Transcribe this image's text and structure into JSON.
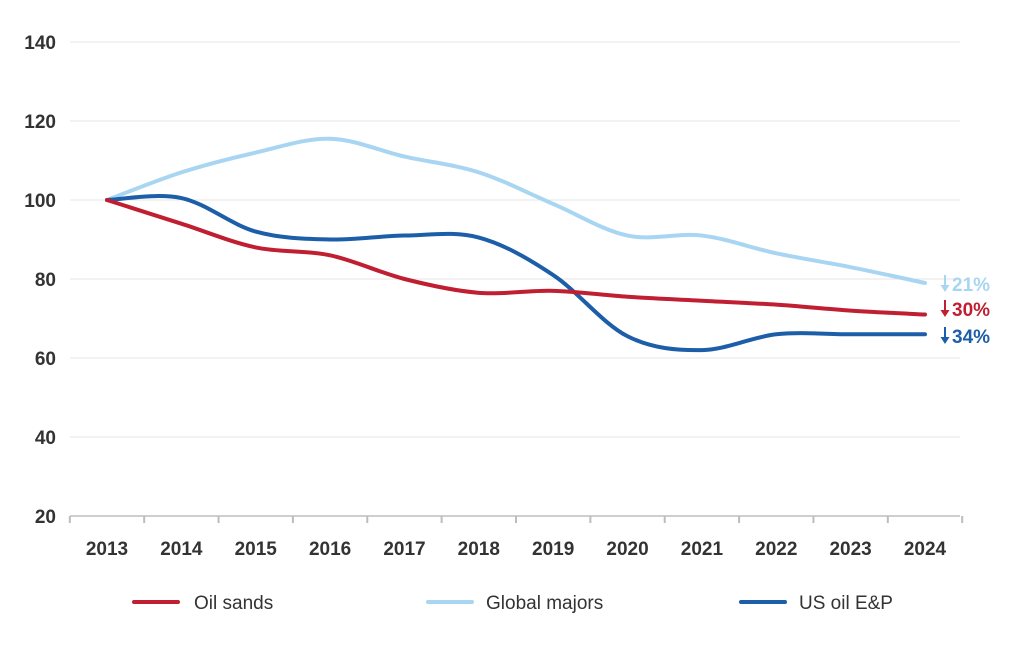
{
  "chart_data": {
    "type": "line",
    "x": [
      "2013",
      "2014",
      "2015",
      "2016",
      "2017",
      "2018",
      "2019",
      "2020",
      "2021",
      "2022",
      "2023",
      "2024"
    ],
    "ylim": [
      20,
      140
    ],
    "yticks": [
      20,
      40,
      60,
      80,
      100,
      120,
      140
    ],
    "grid": true,
    "legend_position": "bottom",
    "series": [
      {
        "name": "Oil sands",
        "color": "#c01f32",
        "values": [
          100,
          94,
          88,
          86,
          80,
          76.5,
          77,
          75.5,
          74.5,
          73.5,
          72,
          71
        ],
        "change_label": "30%"
      },
      {
        "name": "Global majors",
        "color": "#a8d6f2",
        "values": [
          100,
          107,
          112,
          115.5,
          111,
          107,
          99,
          91,
          91,
          86.5,
          83,
          79
        ],
        "change_label": "21%"
      },
      {
        "name": "US oil E&P",
        "color": "#1c5ea8",
        "values": [
          100,
          100.5,
          92,
          90,
          91,
          90.5,
          81,
          65.5,
          62,
          66,
          66,
          66
        ],
        "change_label": "34%"
      }
    ]
  }
}
